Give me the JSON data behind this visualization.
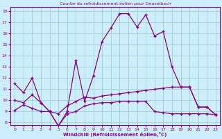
{
  "title": "Courbe du refroidissement éolien pour Deuselbach",
  "xlabel": "Windchill (Refroidissement éolien,°C)",
  "bg_color": "#cceeff",
  "line_color": "#880088",
  "grid_color": "#99ccbb",
  "xlim": [
    -0.5,
    23.5
  ],
  "ylim": [
    7.8,
    18.4
  ],
  "xticks": [
    0,
    1,
    2,
    3,
    4,
    5,
    6,
    7,
    8,
    9,
    10,
    11,
    12,
    13,
    14,
    15,
    16,
    17,
    18,
    19,
    20,
    21,
    22,
    23
  ],
  "yticks": [
    8,
    9,
    10,
    11,
    12,
    13,
    14,
    15,
    16,
    17,
    18
  ],
  "series1_y": [
    11.5,
    10.7,
    12.0,
    9.8,
    9.0,
    7.7,
    9.0,
    13.6,
    9.9,
    12.2,
    15.3,
    16.5,
    17.8,
    17.8,
    16.6,
    17.7,
    15.8,
    16.2,
    13.0,
    11.2,
    11.2,
    9.4,
    9.4,
    8.7
  ],
  "series2_y": [
    10.0,
    9.8,
    10.5,
    9.8,
    9.0,
    8.8,
    9.5,
    9.9,
    10.3,
    10.2,
    10.4,
    10.5,
    10.6,
    10.7,
    10.8,
    10.9,
    11.0,
    11.1,
    11.2,
    11.2,
    11.2,
    9.4,
    9.4,
    8.7
  ],
  "series3_y": [
    9.1,
    9.6,
    9.3,
    9.0,
    9.0,
    7.7,
    8.8,
    9.0,
    9.5,
    9.7,
    9.8,
    9.8,
    9.9,
    9.9,
    9.9,
    9.9,
    9.0,
    8.9,
    8.8,
    8.8,
    8.8,
    8.8,
    8.8,
    8.7
  ]
}
